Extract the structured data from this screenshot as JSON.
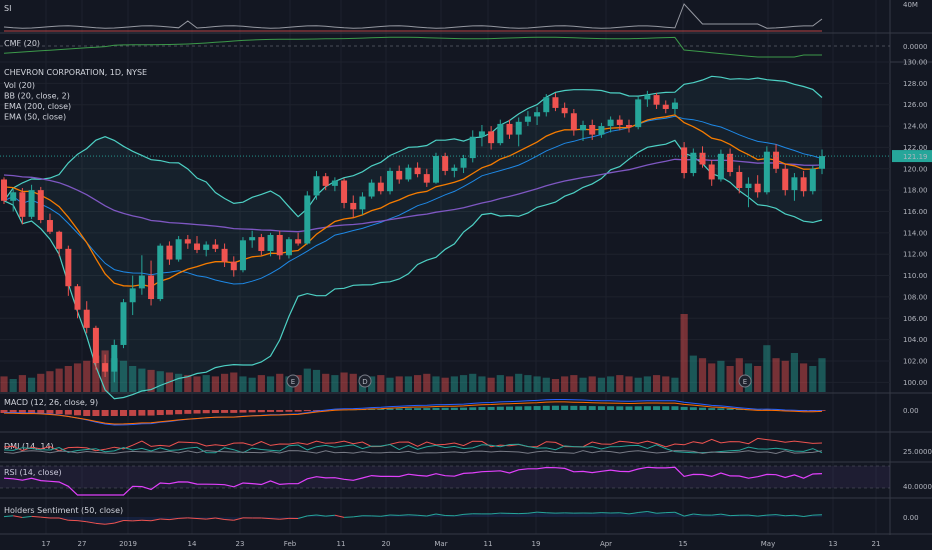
{
  "colors": {
    "background": "#131722",
    "grid": "#1e222d",
    "divider": "#363a45",
    "up": "#26a69a",
    "down": "#ef5350",
    "bb": "#4dd0c4",
    "ema200": "#7e57c2",
    "ema50": "#f57c00",
    "basis": "#1e88e5",
    "rsi": "#e040fb",
    "price_tag": "#26a69a"
  },
  "chart_data": [
    {
      "type": "line",
      "panel": "SI",
      "legend": "SI",
      "ytick_labels": [
        "40M"
      ],
      "grid": true
    },
    {
      "type": "line",
      "panel": "CMF",
      "legend": "CMF (20)",
      "ytick_labels": [
        "0.0000"
      ],
      "grid": true
    },
    {
      "type": "candlestick",
      "panel": "main",
      "title": "CHEVRON CORPORATION, 1D, NYSE",
      "legend": [
        "Vol (20)",
        "BB (20, close, 2)",
        "EMA (200, close)",
        "EMA (50, close)"
      ],
      "ylim": [
        99,
        130
      ],
      "ytick_labels": [
        "130.00",
        "128.00",
        "126.00",
        "124.00",
        "122.00",
        "120.00",
        "118.00",
        "116.00",
        "114.00",
        "112.00",
        "110.00",
        "108.00",
        "106.00",
        "104.00",
        "102.00",
        "100.00"
      ],
      "last_price": "121.19",
      "grid": true,
      "candles": [
        [
          119.0,
          119.2,
          116.7,
          117.0
        ],
        [
          117.0,
          118.1,
          116.0,
          117.8
        ],
        [
          117.8,
          118.2,
          114.8,
          115.5
        ],
        [
          115.5,
          118.5,
          115.3,
          118.0
        ],
        [
          118.0,
          118.3,
          114.9,
          115.2
        ],
        [
          115.2,
          115.8,
          113.9,
          114.1
        ],
        [
          114.1,
          114.2,
          111.8,
          112.5
        ],
        [
          112.5,
          112.8,
          108.1,
          109.0
        ],
        [
          109.0,
          109.2,
          106.0,
          106.8
        ],
        [
          106.8,
          107.6,
          104.6,
          105.1
        ],
        [
          105.1,
          105.3,
          101.2,
          101.8
        ],
        [
          101.8,
          102.6,
          100.5,
          101.0
        ],
        [
          101.0,
          104.0,
          100.0,
          103.5
        ],
        [
          103.5,
          107.8,
          103.2,
          107.5
        ],
        [
          107.5,
          110.0,
          106.3,
          108.8
        ],
        [
          108.8,
          111.9,
          108.2,
          110.0
        ],
        [
          110.0,
          111.4,
          107.2,
          107.8
        ],
        [
          107.8,
          113.0,
          107.6,
          112.8
        ],
        [
          112.8,
          113.2,
          111.0,
          111.5
        ],
        [
          111.5,
          113.7,
          111.3,
          113.4
        ],
        [
          113.4,
          113.8,
          112.5,
          113.0
        ],
        [
          113.0,
          113.7,
          112.1,
          112.4
        ],
        [
          112.4,
          113.2,
          111.8,
          112.9
        ],
        [
          112.9,
          113.4,
          112.2,
          112.5
        ],
        [
          112.5,
          113.0,
          110.8,
          111.3
        ],
        [
          111.3,
          111.8,
          109.9,
          110.5
        ],
        [
          110.5,
          113.6,
          110.3,
          113.3
        ],
        [
          113.3,
          114.2,
          112.6,
          113.6
        ],
        [
          113.6,
          113.9,
          111.9,
          112.3
        ],
        [
          112.3,
          114.0,
          111.8,
          113.8
        ],
        [
          113.8,
          114.2,
          111.5,
          111.9
        ],
        [
          111.9,
          113.6,
          111.6,
          113.4
        ],
        [
          113.4,
          114.0,
          112.8,
          113.0
        ],
        [
          113.0,
          117.9,
          112.9,
          117.5
        ],
        [
          117.5,
          119.8,
          117.1,
          119.3
        ],
        [
          119.3,
          119.6,
          118.0,
          118.4
        ],
        [
          118.4,
          119.2,
          117.9,
          118.9
        ],
        [
          118.9,
          119.1,
          116.3,
          116.8
        ],
        [
          116.8,
          117.5,
          115.4,
          116.2
        ],
        [
          116.2,
          117.8,
          115.7,
          117.4
        ],
        [
          117.4,
          119.0,
          117.2,
          118.7
        ],
        [
          118.7,
          119.3,
          117.6,
          117.9
        ],
        [
          117.9,
          120.1,
          117.6,
          119.8
        ],
        [
          119.8,
          120.3,
          118.6,
          119.0
        ],
        [
          119.0,
          120.4,
          118.8,
          120.1
        ],
        [
          120.1,
          120.6,
          119.2,
          119.5
        ],
        [
          119.5,
          120.0,
          118.3,
          118.7
        ],
        [
          118.7,
          121.5,
          118.6,
          121.2
        ],
        [
          121.2,
          121.5,
          119.4,
          119.8
        ],
        [
          119.8,
          120.4,
          119.2,
          120.1
        ],
        [
          120.1,
          121.3,
          119.6,
          121.0
        ],
        [
          121.0,
          123.6,
          120.6,
          123.0
        ],
        [
          123.0,
          124.1,
          122.1,
          123.5
        ],
        [
          123.5,
          124.0,
          121.8,
          122.4
        ],
        [
          122.4,
          124.6,
          122.2,
          124.2
        ],
        [
          124.2,
          124.6,
          122.8,
          123.2
        ],
        [
          123.2,
          124.8,
          122.1,
          124.4
        ],
        [
          124.4,
          125.4,
          124.0,
          124.9
        ],
        [
          124.9,
          125.8,
          124.1,
          125.3
        ],
        [
          125.3,
          127.0,
          124.9,
          126.7
        ],
        [
          126.7,
          127.1,
          125.4,
          125.7
        ],
        [
          125.7,
          126.2,
          124.8,
          125.2
        ],
        [
          125.2,
          125.6,
          123.1,
          123.6
        ],
        [
          123.6,
          124.5,
          122.6,
          124.1
        ],
        [
          124.1,
          124.6,
          122.7,
          123.2
        ],
        [
          123.2,
          124.3,
          122.9,
          124.0
        ],
        [
          124.0,
          124.9,
          123.4,
          124.6
        ],
        [
          124.6,
          125.0,
          123.6,
          124.1
        ],
        [
          124.1,
          124.6,
          123.4,
          123.9
        ],
        [
          123.9,
          126.8,
          123.7,
          126.5
        ],
        [
          126.5,
          127.3,
          125.8,
          126.9
        ],
        [
          126.9,
          127.1,
          125.6,
          126.0
        ],
        [
          126.0,
          126.4,
          125.2,
          125.6
        ],
        [
          125.6,
          126.6,
          125.1,
          126.2
        ],
        [
          122.0,
          122.5,
          119.1,
          119.6
        ],
        [
          119.6,
          121.9,
          119.3,
          121.5
        ],
        [
          121.5,
          122.1,
          120.1,
          120.4
        ],
        [
          120.4,
          120.8,
          118.4,
          119.0
        ],
        [
          119.0,
          121.8,
          118.8,
          121.4
        ],
        [
          121.4,
          121.9,
          119.3,
          119.7
        ],
        [
          119.7,
          120.3,
          117.7,
          118.2
        ],
        [
          118.2,
          119.2,
          116.4,
          118.6
        ],
        [
          118.6,
          119.4,
          117.3,
          117.8
        ],
        [
          117.8,
          122.1,
          117.6,
          121.6
        ],
        [
          121.6,
          122.3,
          119.6,
          120.0
        ],
        [
          120.0,
          120.4,
          117.5,
          118.0
        ],
        [
          118.0,
          119.6,
          117.0,
          119.2
        ],
        [
          119.2,
          119.8,
          117.4,
          117.9
        ],
        [
          117.9,
          120.3,
          117.6,
          120.0
        ],
        [
          120.0,
          121.8,
          119.5,
          121.19
        ]
      ],
      "volume": [
        12,
        10,
        13,
        11,
        14,
        16,
        18,
        20,
        22,
        24,
        28,
        32,
        26,
        24,
        20,
        18,
        17,
        16,
        15,
        14,
        13,
        12,
        13,
        12,
        14,
        15,
        12,
        11,
        13,
        12,
        14,
        12,
        13,
        18,
        17,
        14,
        13,
        15,
        14,
        12,
        12,
        13,
        11,
        12,
        12,
        13,
        14,
        12,
        11,
        12,
        13,
        14,
        12,
        11,
        13,
        12,
        14,
        13,
        12,
        11,
        10,
        12,
        13,
        11,
        12,
        11,
        12,
        13,
        12,
        11,
        12,
        13,
        12,
        11,
        60,
        28,
        26,
        22,
        24,
        20,
        26,
        22,
        20,
        36,
        26,
        24,
        30,
        22,
        20,
        26
      ],
      "markers": [
        "E",
        "D",
        "E"
      ]
    },
    {
      "type": "line",
      "panel": "MACD",
      "legend": "MACD (12, 26, close, 9)",
      "ytick_labels": [
        "0.00"
      ],
      "grid": true
    },
    {
      "type": "line",
      "panel": "DMI",
      "legend": "DMI (14, 14)",
      "ytick_labels": [
        "25.0000"
      ],
      "grid": true
    },
    {
      "type": "line",
      "panel": "RSI",
      "legend": "RSI (14, close)",
      "ytick_labels": [
        "40.0000"
      ],
      "grid": true
    },
    {
      "type": "line",
      "panel": "Holders Sentiment",
      "legend": "Holders Sentiment (50, close)",
      "ytick_labels": [
        "0.00"
      ],
      "grid": true
    }
  ],
  "x_axis": {
    "labels": [
      "17",
      "27",
      "2019",
      "14",
      "23",
      "Feb",
      "11",
      "20",
      "Mar",
      "11",
      "19",
      "Apr",
      "15",
      "May",
      "13",
      "21"
    ]
  }
}
